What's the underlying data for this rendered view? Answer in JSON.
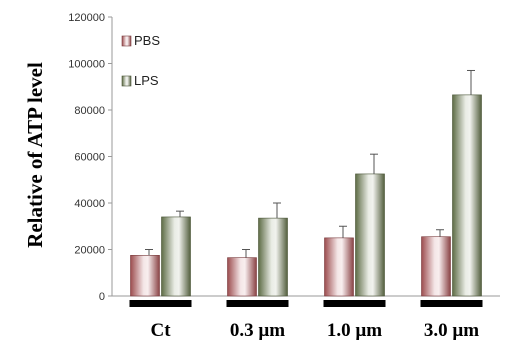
{
  "chart_data": {
    "type": "bar",
    "title": "",
    "xlabel": "",
    "ylabel": "Relative of ATP level",
    "ylim": [
      0,
      120000
    ],
    "yticks": [
      "0",
      "20000",
      "40000",
      "60000",
      "80000",
      "100000",
      "120000"
    ],
    "categories": [
      "Ct",
      "0.3 µm",
      "1.0 µm",
      "3.0 µm"
    ],
    "series": [
      {
        "name": "PBS",
        "values": [
          17500,
          16500,
          25000,
          25500
        ],
        "errors": [
          2500,
          3500,
          5000,
          3000
        ],
        "color": "#b8595c"
      },
      {
        "name": "LPS",
        "values": [
          34000,
          33500,
          52500,
          86500
        ],
        "errors": [
          2500,
          6500,
          8500,
          10500
        ],
        "color": "#6e7f52"
      }
    ],
    "legend": "top-left",
    "grid": false
  }
}
